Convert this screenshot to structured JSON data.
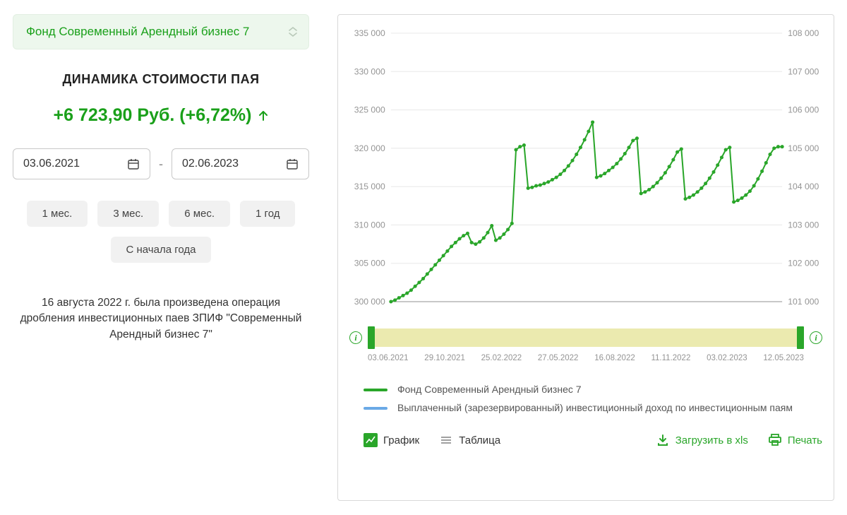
{
  "fund_selector": {
    "label": "Фонд Современный Арендный бизнес 7"
  },
  "section_title": "ДИНАМИКА СТОИМОСТИ ПАЯ",
  "change": {
    "text": "+6 723,90 Руб. (+6,72%)",
    "direction": "up",
    "color": "#1aa01a"
  },
  "date_from": "03.06.2021",
  "date_to": "02.06.2023",
  "range_buttons": [
    "1 мес.",
    "3 мес.",
    "6 мес.",
    "1 год",
    "С начала года"
  ],
  "note": "16 августа 2022 г. была произведена операция дробления инвестиционных паев ЗПИФ \"Современный Арендный бизнес 7\"",
  "chart": {
    "type": "line",
    "bg": "#ffffff",
    "grid_color": "#e8e8e8",
    "axis_label_color": "#949494",
    "axis_label_fontsize": 12,
    "series_color": "#2aa62a",
    "line_width": 2,
    "marker_radius": 2.5,
    "left_axis": {
      "min": 300000,
      "max": 335000,
      "step": 5000,
      "labels": [
        "300 000",
        "305 000",
        "310 000",
        "315 000",
        "320 000",
        "325 000",
        "330 000",
        "335 000"
      ]
    },
    "right_axis": {
      "min": 101000,
      "max": 108000,
      "step": 1000,
      "labels": [
        "101 000",
        "102 000",
        "103 000",
        "104 000",
        "105 000",
        "106 000",
        "107 000",
        "108 000"
      ]
    },
    "x_labels": [
      "03.06.2021",
      "29.10.2021",
      "25.02.2022",
      "27.05.2022",
      "16.08.2022",
      "11.11.2022",
      "03.02.2023",
      "12.05.2023"
    ],
    "series": [
      300000,
      300200,
      300500,
      300800,
      301100,
      301500,
      302000,
      302500,
      303000,
      303600,
      304200,
      304800,
      305400,
      306000,
      306600,
      307200,
      307700,
      308200,
      308600,
      308900,
      307700,
      307500,
      307800,
      308300,
      309000,
      309900,
      308000,
      308300,
      308800,
      309400,
      310200,
      319800,
      320200,
      320400,
      314800,
      314900,
      315100,
      315200,
      315400,
      315600,
      315900,
      316200,
      316600,
      317100,
      317700,
      318400,
      319200,
      320100,
      321100,
      322200,
      323400,
      316200,
      316400,
      316700,
      317100,
      317500,
      318000,
      318600,
      319300,
      320100,
      321000,
      321300,
      314100,
      314300,
      314600,
      315000,
      315500,
      316100,
      316800,
      317600,
      318500,
      319500,
      319900,
      313400,
      313600,
      313900,
      314300,
      314800,
      315400,
      316100,
      316900,
      317800,
      318800,
      319800,
      320100,
      313000,
      313200,
      313500,
      313900,
      314400,
      315100,
      316000,
      317000,
      318100,
      319200,
      320000,
      320200,
      320200
    ]
  },
  "brush": {
    "bg": "#ebeaaf",
    "handle_color": "#2aa62a"
  },
  "legend": {
    "items": [
      {
        "color": "#2aa62a",
        "label": "Фонд Современный Арендный бизнес 7"
      },
      {
        "color": "#6aa9e6",
        "label": "Выплаченный (зарезервированный) инвестиционный доход по инвестиционным паям"
      }
    ]
  },
  "toolbar": {
    "chart": "График",
    "table": "Таблица",
    "download": "Загрузить в xls",
    "print": "Печать"
  }
}
